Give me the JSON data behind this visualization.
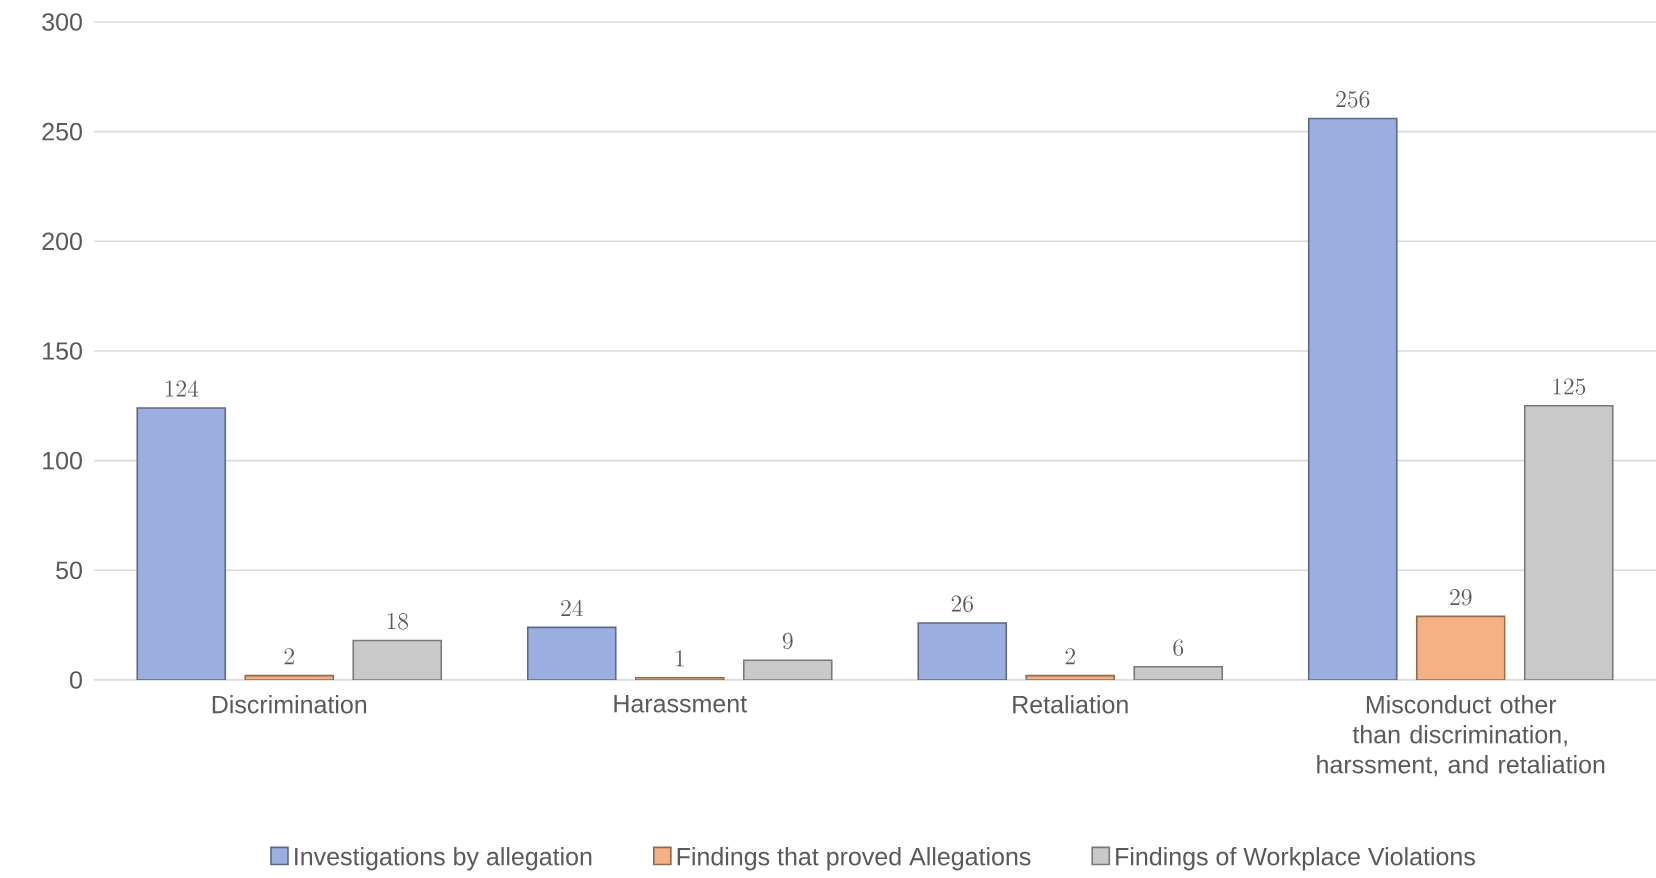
{
  "chart_data": {
    "type": "bar",
    "categories": [
      "Discrimination",
      "Harassment",
      "Retaliation",
      "Misconduct other than discrimination, harssment, and retaliation"
    ],
    "series": [
      {
        "name": "Investigations by allegation",
        "color": "#9aaee0",
        "values": [
          124,
          24,
          26,
          256
        ]
      },
      {
        "name": "Findings that proved Allegations",
        "color": "#f4b183",
        "values": [
          2,
          1,
          2,
          29
        ]
      },
      {
        "name": "Findings of Workplace Violations",
        "color": "#c9c9c9",
        "values": [
          18,
          9,
          6,
          125
        ]
      }
    ],
    "ylim": [
      0,
      300
    ],
    "yticks": [
      0,
      50,
      100,
      150,
      200,
      250,
      300
    ],
    "grid": "y",
    "legend": "bottom",
    "data_labels": true
  }
}
